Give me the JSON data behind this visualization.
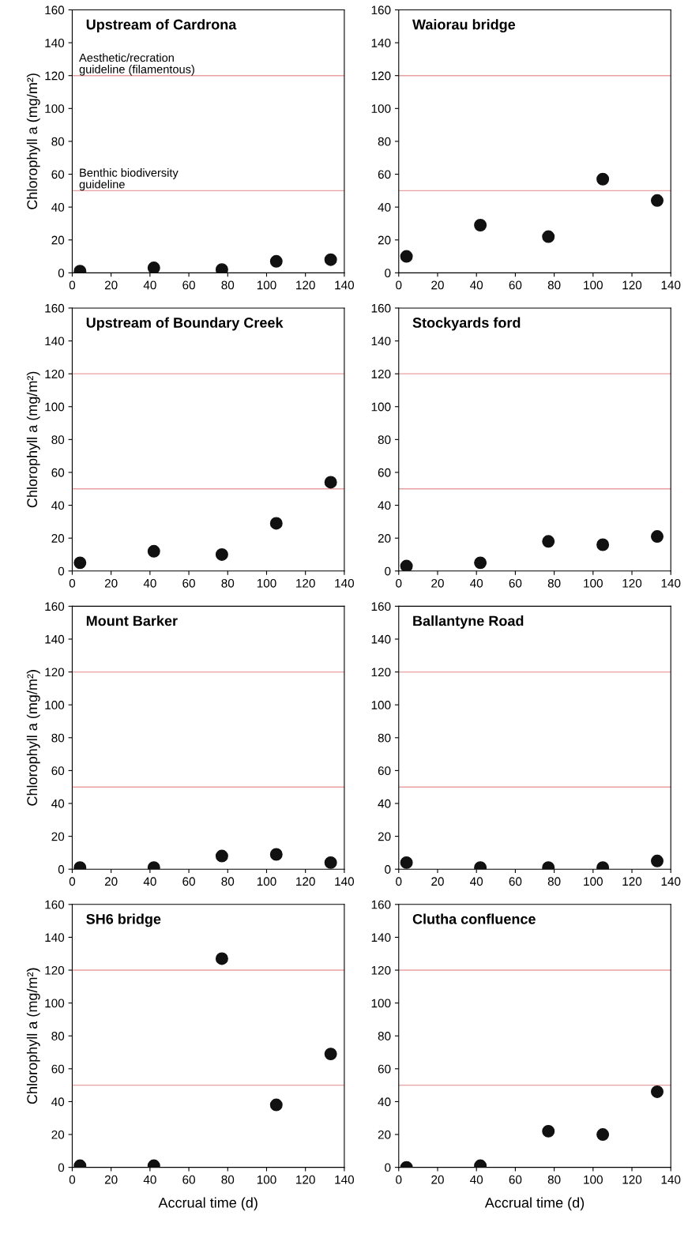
{
  "chart_data": [
    {
      "type": "scatter",
      "title": "Upstream of Cardrona",
      "ylabel": "Chlorophyll a (mg/m²)",
      "x": [
        4,
        42,
        77,
        105,
        133
      ],
      "series": [
        {
          "color": "#111111",
          "values": [
            1,
            3,
            2,
            7,
            8
          ]
        }
      ],
      "xlim": [
        0,
        140
      ],
      "xticks": [
        0,
        20,
        40,
        60,
        80,
        100,
        120,
        140
      ],
      "ylim": [
        0,
        160
      ],
      "yticks": [
        0,
        20,
        40,
        60,
        80,
        100,
        120,
        140,
        160
      ],
      "marker": "circle",
      "grid": false,
      "ref_lines": [
        {
          "axis": "y",
          "value": 120,
          "label": "Aesthetic/recration\nguideline (filamentous)",
          "color": "#e8a0a0"
        },
        {
          "axis": "y",
          "value": 50,
          "label": "Benthic biodiversity\nguideline",
          "color": "#e8a0a0"
        }
      ]
    },
    {
      "type": "scatter",
      "title": "Upstream of Boundary Creek",
      "ylabel": "Chlorophyll a (mg/m²)",
      "x": [
        4,
        42,
        77,
        105,
        133
      ],
      "series": [
        {
          "color": "#111111",
          "values": [
            5,
            12,
            10,
            29,
            54
          ]
        }
      ],
      "xlim": [
        0,
        140
      ],
      "xticks": [
        0,
        20,
        40,
        60,
        80,
        100,
        120,
        140
      ],
      "ylim": [
        0,
        160
      ],
      "yticks": [
        0,
        20,
        40,
        60,
        80,
        100,
        120,
        140,
        160
      ],
      "marker": "circle",
      "grid": false,
      "ref_lines": [
        {
          "axis": "y",
          "value": 120,
          "color": "#e8a0a0"
        },
        {
          "axis": "y",
          "value": 50,
          "color": "#e8a0a0"
        }
      ]
    },
    {
      "type": "scatter",
      "title": "Mount Barker",
      "ylabel": "Chlorophyll a (mg/m²)",
      "x": [
        4,
        42,
        77,
        105,
        133
      ],
      "series": [
        {
          "color": "#111111",
          "values": [
            1,
            1,
            8,
            9,
            4
          ]
        }
      ],
      "xlim": [
        0,
        140
      ],
      "xticks": [
        0,
        20,
        40,
        60,
        80,
        100,
        120,
        140
      ],
      "ylim": [
        0,
        160
      ],
      "yticks": [
        0,
        20,
        40,
        60,
        80,
        100,
        120,
        140,
        160
      ],
      "marker": "circle",
      "grid": false,
      "ref_lines": [
        {
          "axis": "y",
          "value": 120,
          "color": "#e8a0a0"
        },
        {
          "axis": "y",
          "value": 50,
          "color": "#e8a0a0"
        }
      ]
    },
    {
      "type": "scatter",
      "title": "SH6 bridge",
      "ylabel": "Chlorophyll a (mg/m²)",
      "xlabel": "Accrual time (d)",
      "x": [
        4,
        42,
        77,
        105,
        133
      ],
      "series": [
        {
          "color": "#111111",
          "values": [
            1,
            1,
            127,
            38,
            69
          ]
        }
      ],
      "xlim": [
        0,
        140
      ],
      "xticks": [
        0,
        20,
        40,
        60,
        80,
        100,
        120,
        140
      ],
      "ylim": [
        0,
        160
      ],
      "yticks": [
        0,
        20,
        40,
        60,
        80,
        100,
        120,
        140,
        160
      ],
      "marker": "circle",
      "grid": false,
      "ref_lines": [
        {
          "axis": "y",
          "value": 120,
          "color": "#e8a0a0"
        },
        {
          "axis": "y",
          "value": 50,
          "color": "#e8a0a0"
        }
      ]
    },
    {
      "type": "scatter",
      "title": "Waiorau bridge",
      "x": [
        4,
        42,
        77,
        105,
        133
      ],
      "series": [
        {
          "color": "#111111",
          "values": [
            10,
            29,
            22,
            57,
            44
          ]
        }
      ],
      "xlim": [
        0,
        140
      ],
      "xticks": [
        0,
        20,
        40,
        60,
        80,
        100,
        120,
        140
      ],
      "ylim": [
        0,
        160
      ],
      "yticks": [
        0,
        20,
        40,
        60,
        80,
        100,
        120,
        140,
        160
      ],
      "marker": "circle",
      "grid": false,
      "ref_lines": [
        {
          "axis": "y",
          "value": 120,
          "color": "#e8a0a0"
        },
        {
          "axis": "y",
          "value": 50,
          "color": "#e8a0a0"
        }
      ]
    },
    {
      "type": "scatter",
      "title": "Stockyards ford",
      "x": [
        4,
        42,
        77,
        105,
        133
      ],
      "series": [
        {
          "color": "#111111",
          "values": [
            3,
            5,
            18,
            16,
            21
          ]
        }
      ],
      "xlim": [
        0,
        140
      ],
      "xticks": [
        0,
        20,
        40,
        60,
        80,
        100,
        120,
        140
      ],
      "ylim": [
        0,
        160
      ],
      "yticks": [
        0,
        20,
        40,
        60,
        80,
        100,
        120,
        140,
        160
      ],
      "marker": "circle",
      "grid": false,
      "ref_lines": [
        {
          "axis": "y",
          "value": 120,
          "color": "#e8a0a0"
        },
        {
          "axis": "y",
          "value": 50,
          "color": "#e8a0a0"
        }
      ]
    },
    {
      "type": "scatter",
      "title": "Ballantyne Road",
      "x": [
        4,
        42,
        77,
        105,
        133
      ],
      "series": [
        {
          "color": "#111111",
          "values": [
            4,
            1,
            1,
            1,
            5
          ]
        }
      ],
      "xlim": [
        0,
        140
      ],
      "xticks": [
        0,
        20,
        40,
        60,
        80,
        100,
        120,
        140
      ],
      "ylim": [
        0,
        160
      ],
      "yticks": [
        0,
        20,
        40,
        60,
        80,
        100,
        120,
        140,
        160
      ],
      "marker": "circle",
      "grid": false,
      "ref_lines": [
        {
          "axis": "y",
          "value": 120,
          "color": "#e8a0a0"
        },
        {
          "axis": "y",
          "value": 50,
          "color": "#e8a0a0"
        }
      ]
    },
    {
      "type": "scatter",
      "title": "Clutha confluence",
      "xlabel": "Accrual time (d)",
      "x": [
        4,
        42,
        77,
        105,
        133
      ],
      "series": [
        {
          "color": "#111111",
          "values": [
            0,
            1,
            22,
            20,
            46
          ]
        }
      ],
      "xlim": [
        0,
        140
      ],
      "xticks": [
        0,
        20,
        40,
        60,
        80,
        100,
        120,
        140
      ],
      "ylim": [
        0,
        160
      ],
      "yticks": [
        0,
        20,
        40,
        60,
        80,
        100,
        120,
        140,
        160
      ],
      "marker": "circle",
      "grid": false,
      "ref_lines": [
        {
          "axis": "y",
          "value": 120,
          "color": "#e8a0a0"
        },
        {
          "axis": "y",
          "value": 50,
          "color": "#e8a0a0"
        }
      ]
    }
  ]
}
